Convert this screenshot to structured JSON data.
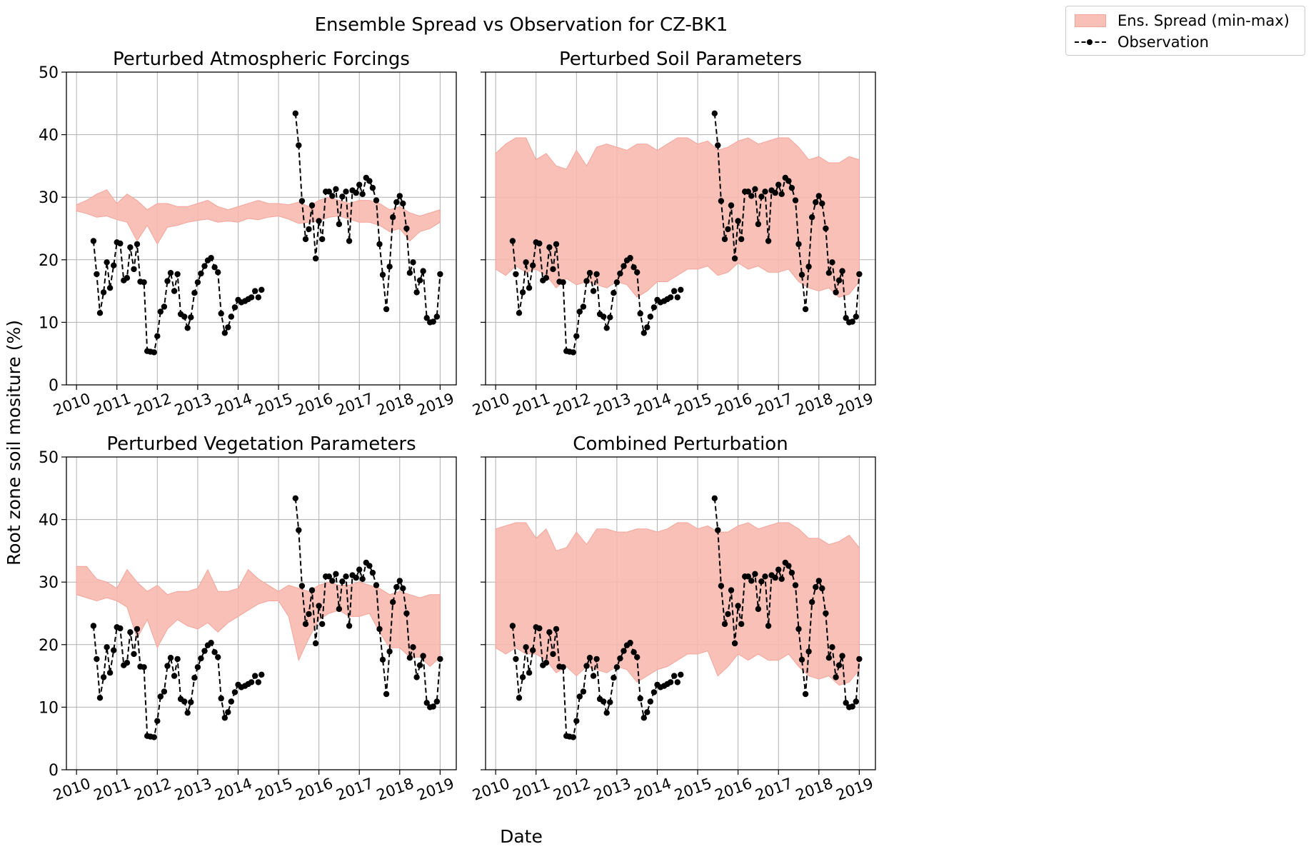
{
  "figure": {
    "suptitle": "Ensemble Spread vs Observation for CZ-BK1",
    "xlabel": "Date",
    "ylabel": "Root zone soil mositure (%)",
    "legend": {
      "spread_label": "Ens. Spread (min-max)",
      "obs_label": "Observation",
      "placement": "top-right",
      "spread_color": "#f8b9b0",
      "obs_color": "#000000"
    },
    "grid": true
  },
  "chart_data": [
    {
      "type": "area",
      "title": "Perturbed Atmospheric Forcings",
      "panel": "atm",
      "xlim": [
        2009.75,
        2019.4
      ],
      "ylim": [
        0,
        50
      ],
      "x_ticks": [
        "2010",
        "2011",
        "2012",
        "2013",
        "2014",
        "2015",
        "2016",
        "2017",
        "2018",
        "2019"
      ],
      "y_ticks": [
        0,
        10,
        20,
        30,
        40,
        50
      ],
      "spread_x": [
        2010.0,
        2010.25,
        2010.5,
        2010.75,
        2011.0,
        2011.25,
        2011.5,
        2011.75,
        2012.0,
        2012.25,
        2012.5,
        2012.75,
        2013.0,
        2013.25,
        2013.5,
        2013.75,
        2014.0,
        2014.25,
        2014.5,
        2014.75,
        2015.0,
        2015.25,
        2015.5,
        2015.75,
        2016.0,
        2016.25,
        2016.5,
        2016.75,
        2017.0,
        2017.25,
        2017.5,
        2017.75,
        2018.0,
        2018.25,
        2018.5,
        2018.75,
        2019.0
      ],
      "spread_min": [
        27.8,
        27.4,
        26.8,
        27.0,
        26.4,
        26.0,
        23.0,
        25.5,
        22.5,
        25.2,
        25.5,
        26.0,
        26.3,
        26.5,
        26.0,
        26.2,
        26.0,
        26.6,
        26.4,
        26.8,
        27.0,
        26.5,
        25.8,
        26.0,
        26.2,
        26.8,
        27.0,
        26.5,
        26.0,
        26.0,
        25.5,
        24.5,
        25.0,
        23.0,
        24.5,
        25.0,
        26.0
      ],
      "spread_max": [
        28.8,
        29.5,
        30.5,
        31.2,
        29.0,
        30.5,
        29.5,
        28.0,
        29.0,
        29.0,
        28.5,
        28.5,
        29.0,
        29.5,
        28.5,
        28.0,
        28.5,
        29.0,
        29.5,
        29.0,
        29.0,
        28.8,
        29.2,
        28.5,
        29.5,
        30.0,
        29.5,
        29.0,
        29.5,
        29.5,
        29.0,
        28.0,
        28.5,
        27.5,
        27.0,
        27.5,
        28.0
      ]
    },
    {
      "type": "area",
      "title": "Perturbed Soil Parameters",
      "panel": "soil",
      "xlim": [
        2009.75,
        2019.4
      ],
      "ylim": [
        0,
        50
      ],
      "x_ticks": [
        "2010",
        "2011",
        "2012",
        "2013",
        "2014",
        "2015",
        "2016",
        "2017",
        "2018",
        "2019"
      ],
      "y_ticks": [
        0,
        10,
        20,
        30,
        40,
        50
      ],
      "spread_x": [
        2010.0,
        2010.25,
        2010.5,
        2010.75,
        2011.0,
        2011.25,
        2011.5,
        2011.75,
        2012.0,
        2012.25,
        2012.5,
        2012.75,
        2013.0,
        2013.25,
        2013.5,
        2013.75,
        2014.0,
        2014.25,
        2014.5,
        2014.75,
        2015.0,
        2015.25,
        2015.5,
        2015.75,
        2016.0,
        2016.25,
        2016.5,
        2016.75,
        2017.0,
        2017.25,
        2017.5,
        2017.75,
        2018.0,
        2018.25,
        2018.5,
        2018.75,
        2019.0
      ],
      "spread_min": [
        18.5,
        17.5,
        19.0,
        18.0,
        18.5,
        17.5,
        15.5,
        17.0,
        16.0,
        16.5,
        16.0,
        15.5,
        16.5,
        16.0,
        14.0,
        15.0,
        16.5,
        16.5,
        17.5,
        18.5,
        18.5,
        19.0,
        17.5,
        18.0,
        19.5,
        18.5,
        19.0,
        18.0,
        18.0,
        18.5,
        16.5,
        15.5,
        15.0,
        15.5,
        14.0,
        14.5,
        16.5
      ],
      "spread_max": [
        37.0,
        38.5,
        39.5,
        39.5,
        36.0,
        37.0,
        35.0,
        34.5,
        37.5,
        35.0,
        38.0,
        38.5,
        38.0,
        37.5,
        38.5,
        38.5,
        37.5,
        38.5,
        39.5,
        39.5,
        38.5,
        39.0,
        37.5,
        38.0,
        39.0,
        39.5,
        38.5,
        39.0,
        39.5,
        39.5,
        38.0,
        36.0,
        36.5,
        35.5,
        35.5,
        36.5,
        36.0
      ]
    },
    {
      "type": "area",
      "title": "Perturbed Vegetation Parameters",
      "panel": "veg",
      "xlim": [
        2009.75,
        2019.4
      ],
      "ylim": [
        0,
        50
      ],
      "x_ticks": [
        "2010",
        "2011",
        "2012",
        "2013",
        "2014",
        "2015",
        "2016",
        "2017",
        "2018",
        "2019"
      ],
      "y_ticks": [
        0,
        10,
        20,
        30,
        40,
        50
      ],
      "spread_x": [
        2010.0,
        2010.25,
        2010.5,
        2010.75,
        2011.0,
        2011.25,
        2011.5,
        2011.75,
        2012.0,
        2012.25,
        2012.5,
        2012.75,
        2013.0,
        2013.25,
        2013.5,
        2013.75,
        2014.0,
        2014.25,
        2014.5,
        2014.75,
        2015.0,
        2015.25,
        2015.5,
        2015.75,
        2016.0,
        2016.25,
        2016.5,
        2016.75,
        2017.0,
        2017.25,
        2017.5,
        2017.75,
        2018.0,
        2018.25,
        2018.5,
        2018.75,
        2019.0
      ],
      "spread_min": [
        28.0,
        27.5,
        27.0,
        27.5,
        27.0,
        26.0,
        21.0,
        24.0,
        19.5,
        22.5,
        24.0,
        23.0,
        22.5,
        23.5,
        22.0,
        23.5,
        24.5,
        25.5,
        26.5,
        27.0,
        27.0,
        24.5,
        17.5,
        21.0,
        24.0,
        25.0,
        25.5,
        24.5,
        24.5,
        25.0,
        22.0,
        19.5,
        19.5,
        18.0,
        18.0,
        16.5,
        18.0
      ],
      "spread_max": [
        32.5,
        32.5,
        30.5,
        30.0,
        29.0,
        32.0,
        30.0,
        28.5,
        29.5,
        28.0,
        28.5,
        28.5,
        29.0,
        32.0,
        28.5,
        28.5,
        29.0,
        32.0,
        30.5,
        29.5,
        28.5,
        29.5,
        29.0,
        28.5,
        29.5,
        30.0,
        29.5,
        29.5,
        30.0,
        29.5,
        29.0,
        28.0,
        28.5,
        28.0,
        27.5,
        28.0,
        28.0
      ]
    },
    {
      "type": "area",
      "title": "Combined Perturbation",
      "panel": "comb",
      "xlim": [
        2009.75,
        2019.4
      ],
      "ylim": [
        0,
        50
      ],
      "x_ticks": [
        "2010",
        "2011",
        "2012",
        "2013",
        "2014",
        "2015",
        "2016",
        "2017",
        "2018",
        "2019"
      ],
      "y_ticks": [
        0,
        10,
        20,
        30,
        40,
        50
      ],
      "spread_x": [
        2010.0,
        2010.25,
        2010.5,
        2010.75,
        2011.0,
        2011.25,
        2011.5,
        2011.75,
        2012.0,
        2012.25,
        2012.5,
        2012.75,
        2013.0,
        2013.25,
        2013.5,
        2013.75,
        2014.0,
        2014.25,
        2014.5,
        2014.75,
        2015.0,
        2015.25,
        2015.5,
        2015.75,
        2016.0,
        2016.25,
        2016.5,
        2016.75,
        2017.0,
        2017.25,
        2017.5,
        2017.75,
        2018.0,
        2018.25,
        2018.5,
        2018.75,
        2019.0
      ],
      "spread_min": [
        19.5,
        18.5,
        19.5,
        18.5,
        18.5,
        17.5,
        15.5,
        16.5,
        15.0,
        16.5,
        16.0,
        15.5,
        16.5,
        16.0,
        14.0,
        15.0,
        16.0,
        16.5,
        17.5,
        18.5,
        18.5,
        19.0,
        15.0,
        16.5,
        18.5,
        17.5,
        18.5,
        17.5,
        17.5,
        18.5,
        16.5,
        15.0,
        14.5,
        15.0,
        13.5,
        14.0,
        16.0
      ],
      "spread_max": [
        38.5,
        39.0,
        39.5,
        39.5,
        37.0,
        38.5,
        35.0,
        35.5,
        38.0,
        36.0,
        38.5,
        38.5,
        38.0,
        38.0,
        38.5,
        38.5,
        38.0,
        38.5,
        39.5,
        39.5,
        38.5,
        39.0,
        38.0,
        38.0,
        39.0,
        39.5,
        38.5,
        39.0,
        39.5,
        39.5,
        38.5,
        37.0,
        37.0,
        36.0,
        36.5,
        37.5,
        35.5
      ]
    }
  ],
  "observation": {
    "x": [
      2010.42,
      2010.5,
      2010.58,
      2010.67,
      2010.75,
      2010.83,
      2010.92,
      2011.0,
      2011.08,
      2011.17,
      2011.25,
      2011.33,
      2011.42,
      2011.5,
      2011.58,
      2011.67,
      2011.75,
      2011.83,
      2011.92,
      2012.0,
      2012.08,
      2012.17,
      2012.25,
      2012.33,
      2012.42,
      2012.5,
      2012.58,
      2012.67,
      2012.75,
      2012.83,
      2012.92,
      2013.0,
      2013.08,
      2013.17,
      2013.25,
      2013.33,
      2013.42,
      2013.5,
      2013.58,
      2013.67,
      2013.75,
      2013.83,
      2013.92,
      2014.0,
      2014.08,
      2014.17,
      2014.25,
      2014.33,
      2014.42,
      2014.5,
      2014.58
    ],
    "y": [
      23.0,
      17.7,
      11.5,
      14.8,
      19.6,
      15.5,
      19.1,
      22.8,
      22.6,
      16.7,
      17.1,
      22.0,
      18.5,
      22.5,
      16.5,
      16.4,
      5.4,
      5.3,
      5.2,
      7.8,
      11.7,
      12.5,
      16.6,
      17.9,
      15.0,
      17.7,
      11.3,
      10.9,
      9.1,
      10.8,
      14.7,
      16.4,
      17.8,
      19.0,
      19.9,
      20.3,
      18.8,
      18.0,
      11.4,
      8.3,
      9.2,
      10.9,
      12.4,
      13.6,
      13.2,
      13.4,
      13.7,
      14.0,
      15.0,
      14.0,
      15.2
    ],
    "x2": [
      2015.42,
      2015.5,
      2015.58,
      2015.67,
      2015.75,
      2015.83,
      2015.92,
      2016.0,
      2016.08,
      2016.17,
      2016.25,
      2016.33,
      2016.42,
      2016.5,
      2016.58,
      2016.67,
      2016.75,
      2016.83,
      2016.92,
      2017.0,
      2017.08,
      2017.17,
      2017.25,
      2017.33,
      2017.42,
      2017.5,
      2017.58,
      2017.67,
      2017.75,
      2017.83,
      2017.92,
      2018.0,
      2018.08,
      2018.17,
      2018.25,
      2018.33,
      2018.42,
      2018.5,
      2018.58,
      2018.67,
      2018.75,
      2018.83,
      2018.92,
      2019.0
    ],
    "y2": [
      43.4,
      38.3,
      29.4,
      23.3,
      24.9,
      28.7,
      20.2,
      26.2,
      23.3,
      30.9,
      30.9,
      30.2,
      31.3,
      25.7,
      30.1,
      30.9,
      23.0,
      31.1,
      30.7,
      32.0,
      30.5,
      33.1,
      32.6,
      31.5,
      29.5,
      22.5,
      17.6,
      12.1,
      18.9,
      26.8,
      29.2,
      30.2,
      29.0,
      25.0,
      17.9,
      19.6,
      14.8,
      16.7,
      18.2,
      10.7,
      10.0,
      10.1,
      10.9,
      17.7
    ]
  }
}
